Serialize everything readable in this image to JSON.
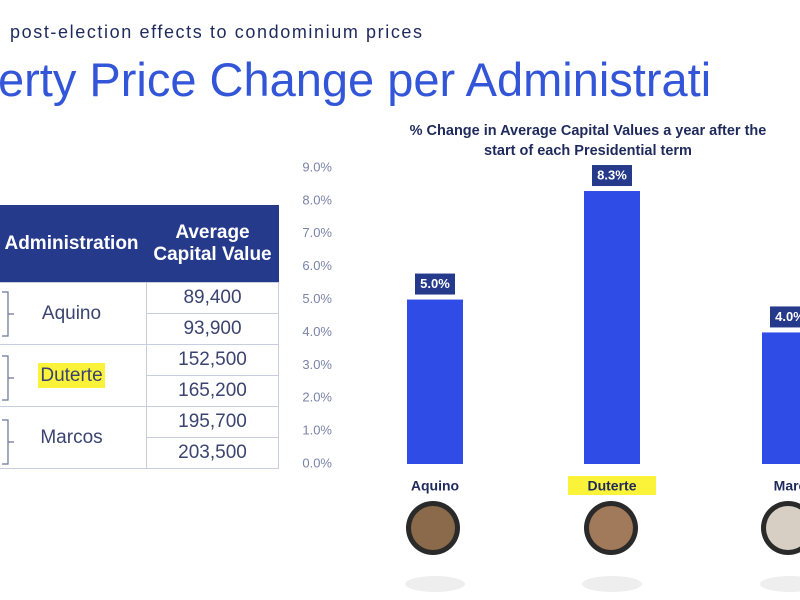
{
  "header": {
    "subtitle": "post-election effects to condominium prices",
    "title": "erty Price Change per Administrati"
  },
  "table": {
    "header": [
      "Administration",
      "Average Capital Value"
    ],
    "rows": [
      {
        "name": "Aquino",
        "values": [
          "89,400",
          "93,900"
        ]
      },
      {
        "name": "Duterte",
        "values": [
          "152,500",
          "165,200"
        ]
      },
      {
        "name": "Marcos",
        "values": [
          "195,700",
          "203,500"
        ]
      }
    ]
  },
  "chart_data": {
    "type": "bar",
    "title": "% Change in Average Capital Values a year after the start of each Presidential term",
    "categories": [
      "Aquino",
      "Duterte",
      "Marc"
    ],
    "values": [
      5.0,
      8.3,
      4.0
    ],
    "value_labels": [
      "5.0%",
      "8.3%",
      "4.0%"
    ],
    "color": "#2f4ce6",
    "ylim": [
      0,
      9
    ],
    "yticks": [
      {
        "value": 0,
        "label": "0.0%"
      },
      {
        "value": 1,
        "label": "1.0%"
      },
      {
        "value": 2,
        "label": "2.0%"
      },
      {
        "value": 3,
        "label": "3.0%"
      },
      {
        "value": 4,
        "label": "4.0%"
      },
      {
        "value": 5,
        "label": "5.0%"
      },
      {
        "value": 6,
        "label": "6.0%"
      },
      {
        "value": 7,
        "label": "7.0%"
      },
      {
        "value": 8,
        "label": "8.0%"
      },
      {
        "value": 9,
        "label": "9.0%"
      }
    ]
  }
}
